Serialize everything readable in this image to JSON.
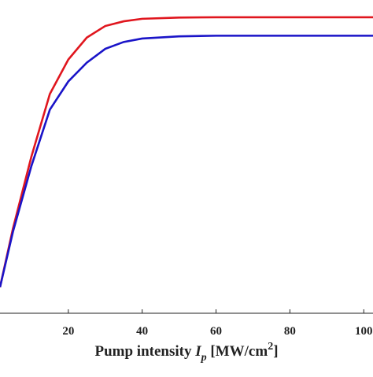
{
  "chart_data": {
    "type": "line",
    "x_label": [
      "Pump intensity ",
      "I",
      "p",
      " [MW/cm",
      "2",
      "]"
    ],
    "x": [
      1.5,
      5,
      10,
      15,
      20,
      25,
      30,
      35,
      40,
      50,
      60,
      70,
      80,
      90,
      100,
      102.5
    ],
    "series": [
      {
        "color": "#e0161e",
        "values": [
          0.083,
          0.27,
          0.5,
          0.7,
          0.81,
          0.88,
          0.917,
          0.932,
          0.94,
          0.944,
          0.945,
          0.945,
          0.945,
          0.945,
          0.945,
          0.945
        ]
      },
      {
        "color": "#1a14c8",
        "values": [
          0.083,
          0.26,
          0.47,
          0.65,
          0.74,
          0.8,
          0.844,
          0.866,
          0.877,
          0.884,
          0.886,
          0.886,
          0.886,
          0.886,
          0.886,
          0.886
        ]
      }
    ],
    "xlim": [
      1.5,
      102.5
    ],
    "ylim": [
      0,
      1
    ],
    "xticks": [
      20,
      40,
      60,
      80,
      100
    ]
  }
}
